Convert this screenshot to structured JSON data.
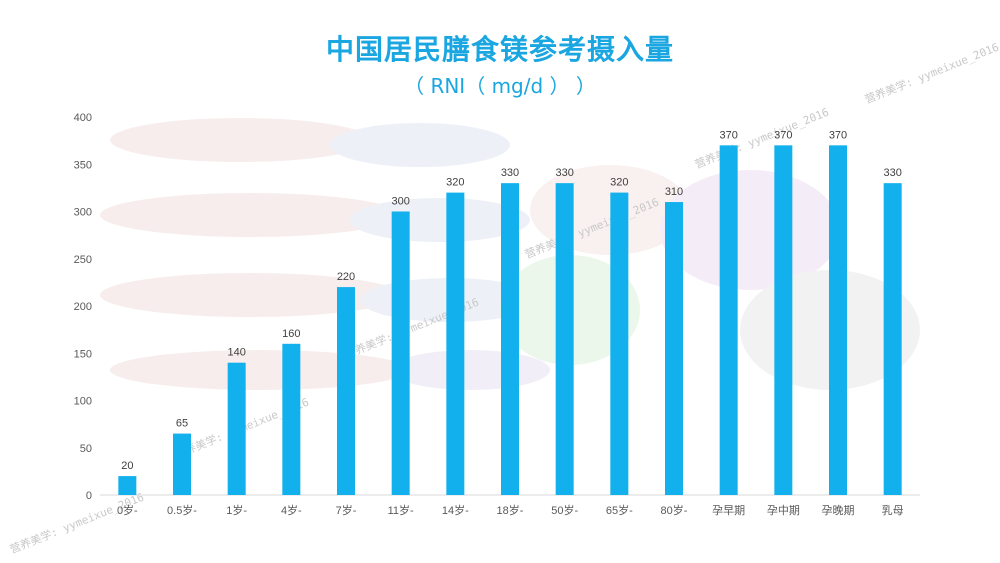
{
  "header": {
    "title": "中国居民膳食镁参考摄入量",
    "subtitle": "（ RNI（ mg/d ） ）"
  },
  "watermarks": [
    "营养美学: yymeixue_2016",
    "营养美学: yymeixue_2016",
    "营养美学: yymeixue_2016",
    "营养美学: yymeixue_2016",
    "营养美学: yymeixue_2016",
    "营养美学: yymeixue_2016"
  ],
  "colors": {
    "accent": "#1aa6e0",
    "bar": "#12b0ec",
    "axis_text": "#595959",
    "label_text": "#404040"
  },
  "chart_data": {
    "type": "bar",
    "title": "中国居民膳食镁参考摄入量",
    "subtitle": "（ RNI（ mg/d ） ）",
    "categories": [
      "0岁-",
      "0.5岁-",
      "1岁-",
      "4岁-",
      "7岁-",
      "11岁-",
      "14岁-",
      "18岁-",
      "50岁-",
      "65岁-",
      "80岁-",
      "孕早期",
      "孕中期",
      "孕晚期",
      "乳母"
    ],
    "values": [
      20,
      65,
      140,
      160,
      220,
      300,
      320,
      330,
      330,
      320,
      310,
      370,
      370,
      370,
      330
    ],
    "ylim": [
      0,
      400
    ],
    "yticks": [
      0,
      50,
      100,
      150,
      200,
      250,
      300,
      350,
      400
    ],
    "grid": false,
    "legend": "none",
    "xlabel": "",
    "ylabel": ""
  }
}
